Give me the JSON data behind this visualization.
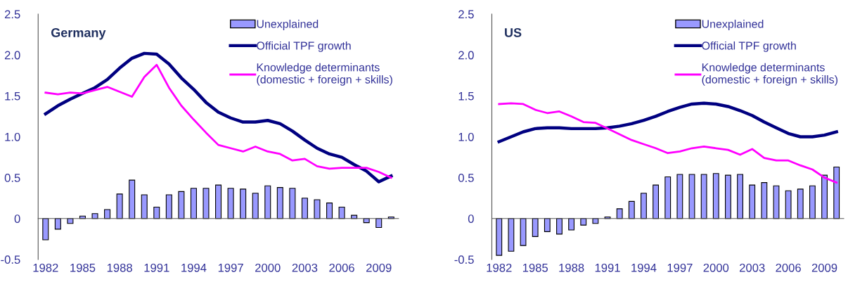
{
  "chart_data": [
    {
      "type": "bar",
      "title": "Germany",
      "categories": [
        "1982",
        null,
        null,
        "1985",
        null,
        null,
        "1988",
        null,
        null,
        "1991",
        null,
        null,
        "1994",
        null,
        null,
        "1997",
        null,
        null,
        "2000",
        null,
        null,
        "2003",
        null,
        null,
        "2006",
        null,
        null,
        "2009",
        null
      ],
      "series": [
        {
          "name": "Unexplained",
          "type": "bar",
          "color": "#9999ff",
          "values": [
            -0.26,
            -0.13,
            -0.06,
            0.03,
            0.06,
            0.11,
            0.3,
            0.47,
            0.29,
            0.14,
            0.29,
            0.33,
            0.37,
            0.37,
            0.41,
            0.37,
            0.36,
            0.31,
            0.4,
            0.38,
            0.37,
            0.25,
            0.23,
            0.19,
            0.14,
            0.04,
            -0.05,
            -0.11,
            0.02
          ]
        },
        {
          "name": "Official TPF growth",
          "type": "line",
          "color": "#000080",
          "values": [
            1.28,
            1.38,
            1.46,
            1.53,
            1.6,
            1.7,
            1.84,
            1.96,
            2.02,
            2.01,
            1.89,
            1.72,
            1.58,
            1.42,
            1.3,
            1.23,
            1.18,
            1.18,
            1.2,
            1.16,
            1.07,
            0.96,
            0.86,
            0.79,
            0.75,
            0.66,
            0.58,
            0.45,
            0.52
          ]
        },
        {
          "name": "Knowledge determinants\n(domestic + foreign + skills)",
          "type": "line",
          "color": "#ff00ff",
          "values": [
            1.54,
            1.52,
            1.54,
            1.53,
            1.57,
            1.61,
            1.55,
            1.49,
            1.73,
            1.88,
            1.6,
            1.38,
            1.21,
            1.05,
            0.9,
            0.86,
            0.82,
            0.88,
            0.82,
            0.79,
            0.71,
            0.73,
            0.64,
            0.61,
            0.62,
            0.62,
            0.62,
            0.57,
            0.5
          ]
        }
      ],
      "ylim": [
        -0.5,
        2.5
      ],
      "yticks": [
        {
          "value": -0.5,
          "label": "-0.5"
        },
        {
          "value": 0,
          "label": "0"
        },
        {
          "value": 0.5,
          "label": "0.5"
        },
        {
          "value": 1,
          "label": "1.0"
        },
        {
          "value": 1.5,
          "label": "1.5"
        },
        {
          "value": 2,
          "label": "2.0"
        },
        {
          "value": 2.5,
          "label": "2.5"
        }
      ],
      "legend": "top right"
    },
    {
      "type": "bar",
      "title": "US",
      "categories": [
        "1982",
        null,
        null,
        "1985",
        null,
        null,
        "1988",
        null,
        null,
        "1991",
        null,
        null,
        "1994",
        null,
        null,
        "1997",
        null,
        null,
        "2000",
        null,
        null,
        "2003",
        null,
        null,
        "2006",
        null,
        null,
        "2009",
        null
      ],
      "series": [
        {
          "name": "Unexplained",
          "type": "bar",
          "color": "#9999ff",
          "values": [
            -0.45,
            -0.4,
            -0.33,
            -0.22,
            -0.16,
            -0.19,
            -0.14,
            -0.08,
            -0.06,
            0.02,
            0.12,
            0.21,
            0.31,
            0.41,
            0.51,
            0.54,
            0.54,
            0.54,
            0.55,
            0.53,
            0.54,
            0.41,
            0.44,
            0.4,
            0.34,
            0.36,
            0.4,
            0.53,
            0.63
          ]
        },
        {
          "name": "Official TPF growth",
          "type": "line",
          "color": "#000080",
          "values": [
            0.94,
            1.0,
            1.06,
            1.1,
            1.11,
            1.11,
            1.1,
            1.1,
            1.1,
            1.11,
            1.13,
            1.16,
            1.2,
            1.25,
            1.31,
            1.36,
            1.4,
            1.41,
            1.4,
            1.37,
            1.32,
            1.26,
            1.18,
            1.11,
            1.04,
            1.0,
            1.0,
            1.02,
            1.06
          ]
        },
        {
          "name": "Knowledge determinants\n(domestic + foreign + skills)",
          "type": "line",
          "color": "#ff00ff",
          "values": [
            1.4,
            1.41,
            1.4,
            1.33,
            1.29,
            1.31,
            1.25,
            1.18,
            1.17,
            1.1,
            1.03,
            0.96,
            0.91,
            0.86,
            0.8,
            0.82,
            0.86,
            0.88,
            0.86,
            0.84,
            0.78,
            0.85,
            0.74,
            0.71,
            0.71,
            0.65,
            0.6,
            0.5,
            0.44
          ]
        }
      ],
      "ylim": [
        -0.5,
        2.5
      ],
      "yticks": [
        {
          "value": -0.5,
          "label": "-0.5"
        },
        {
          "value": 0,
          "label": "0"
        },
        {
          "value": 0.5,
          "label": "0.5"
        },
        {
          "value": 1,
          "label": "1.0"
        },
        {
          "value": 1.5,
          "label": "1.5"
        },
        {
          "value": 2,
          "label": "2.0"
        },
        {
          "value": 2.5,
          "label": "2.5"
        }
      ],
      "legend": "top right"
    }
  ]
}
